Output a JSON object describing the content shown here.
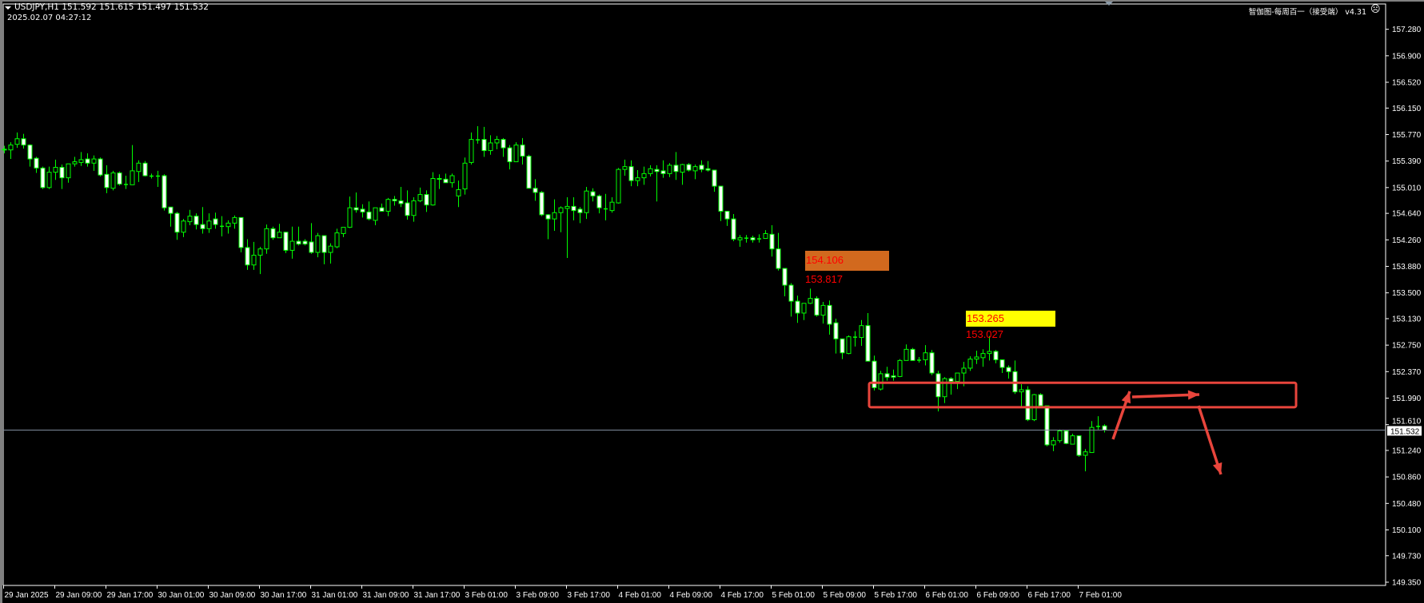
{
  "header": {
    "symbol_line": "USDJPY,H1  151.592 151.615 151.497 151.532",
    "datetime": "2025.02.07 04:27:12",
    "indicator_label": "智伽图-每周百一（接受端） v4.31",
    "indicator_icon": "sad-face-icon"
  },
  "colors": {
    "background": "#000000",
    "axis": "#ffffff",
    "candle_outline": "#00ff00",
    "bull_fill": "#000000",
    "bear_fill": "#ffffff",
    "price_line": "#7f8c9c",
    "annotation": "#e8453c",
    "label_orange": "#d2691e",
    "label_yellow": "#ffff00",
    "label_text": "#ff0000"
  },
  "labels": {
    "orange_box": "154.106",
    "orange_below": "153.817",
    "yellow_box": "153.265",
    "yellow_below": "153.027"
  },
  "chart_data": {
    "type": "candlestick",
    "symbol": "USDJPY",
    "timeframe": "H1",
    "ylim": [
      149.35,
      157.7
    ],
    "grid": false,
    "current_price": 151.532,
    "y_ticks": [
      "157.280",
      "156.900",
      "156.520",
      "156.150",
      "155.770",
      "155.390",
      "155.010",
      "154.640",
      "154.260",
      "153.880",
      "153.500",
      "153.130",
      "152.750",
      "152.370",
      "151.990",
      "151.610",
      "151.240",
      "150.860",
      "150.480",
      "150.100",
      "149.730",
      "149.350"
    ],
    "x_ticks": [
      "29 Jan 2025",
      "29 Jan 09:00",
      "29 Jan 17:00",
      "30 Jan 01:00",
      "30 Jan 09:00",
      "30 Jan 17:00",
      "31 Jan 01:00",
      "31 Jan 09:00",
      "31 Jan 17:00",
      "3 Feb 01:00",
      "3 Feb 09:00",
      "3 Feb 17:00",
      "4 Feb 01:00",
      "4 Feb 09:00",
      "4 Feb 17:00",
      "5 Feb 01:00",
      "5 Feb 09:00",
      "5 Feb 17:00",
      "6 Feb 01:00",
      "6 Feb 09:00",
      "6 Feb 17:00",
      "7 Feb 01:00"
    ],
    "zone": {
      "top": 152.21,
      "bottom": 151.86
    },
    "ohlc": [
      [
        155.55,
        155.61,
        155.5,
        155.56
      ],
      [
        155.55,
        155.66,
        155.42,
        155.62
      ],
      [
        155.63,
        155.8,
        155.58,
        155.71
      ],
      [
        155.71,
        155.78,
        155.57,
        155.62
      ],
      [
        155.62,
        155.63,
        155.31,
        155.42
      ],
      [
        155.43,
        155.45,
        155.22,
        155.29
      ],
      [
        155.29,
        155.31,
        154.99,
        155.01
      ],
      [
        155.01,
        155.31,
        154.99,
        155.23
      ],
      [
        155.23,
        155.41,
        155.12,
        155.3
      ],
      [
        155.3,
        155.34,
        154.99,
        155.15
      ],
      [
        155.15,
        155.35,
        155.08,
        155.35
      ],
      [
        155.35,
        155.45,
        155.31,
        155.38
      ],
      [
        155.37,
        155.52,
        155.32,
        155.41
      ],
      [
        155.42,
        155.5,
        155.31,
        155.36
      ],
      [
        155.36,
        155.47,
        155.25,
        155.42
      ],
      [
        155.42,
        155.44,
        155.17,
        155.19
      ],
      [
        155.2,
        155.33,
        154.93,
        155.01
      ],
      [
        155.0,
        155.25,
        154.97,
        155.22
      ],
      [
        155.22,
        155.24,
        155.04,
        155.06
      ],
      [
        155.06,
        155.18,
        154.99,
        155.06
      ],
      [
        155.05,
        155.62,
        155.05,
        155.25
      ],
      [
        155.24,
        155.4,
        155.09,
        155.36
      ],
      [
        155.36,
        155.39,
        155.17,
        155.18
      ],
      [
        155.18,
        155.21,
        155.14,
        155.18
      ],
      [
        155.18,
        155.25,
        155.02,
        155.18
      ],
      [
        155.18,
        155.2,
        154.68,
        154.72
      ],
      [
        154.73,
        154.73,
        154.45,
        154.64
      ],
      [
        154.64,
        154.66,
        154.26,
        154.37
      ],
      [
        154.37,
        154.56,
        154.3,
        154.53
      ],
      [
        154.52,
        154.69,
        154.47,
        154.6
      ],
      [
        154.6,
        154.64,
        154.41,
        154.48
      ],
      [
        154.48,
        154.73,
        154.35,
        154.42
      ],
      [
        154.42,
        154.64,
        154.36,
        154.53
      ],
      [
        154.56,
        154.65,
        154.42,
        154.48
      ],
      [
        154.46,
        154.6,
        154.31,
        154.46
      ],
      [
        154.45,
        154.54,
        154.35,
        154.5
      ],
      [
        154.5,
        154.61,
        154.42,
        154.58
      ],
      [
        154.58,
        154.58,
        154.08,
        154.15
      ],
      [
        154.15,
        154.27,
        153.83,
        153.9
      ],
      [
        153.9,
        154.23,
        153.83,
        154.04
      ],
      [
        154.04,
        154.16,
        153.77,
        154.13
      ],
      [
        154.13,
        154.48,
        154.06,
        154.42
      ],
      [
        154.42,
        154.45,
        154.26,
        154.29
      ],
      [
        154.29,
        154.49,
        154.29,
        154.37
      ],
      [
        154.37,
        154.37,
        154.07,
        154.11
      ],
      [
        154.11,
        154.45,
        153.99,
        154.24
      ],
      [
        154.24,
        154.45,
        154.18,
        154.2
      ],
      [
        154.24,
        154.27,
        154.18,
        154.2
      ],
      [
        154.23,
        154.5,
        154.06,
        154.08
      ],
      [
        154.08,
        154.36,
        154.01,
        154.32
      ],
      [
        154.32,
        154.32,
        153.91,
        154.08
      ],
      [
        154.08,
        154.21,
        153.92,
        154.17
      ],
      [
        154.16,
        154.42,
        154.14,
        154.36
      ],
      [
        154.35,
        154.44,
        154.3,
        154.44
      ],
      [
        154.44,
        154.88,
        154.43,
        154.72
      ],
      [
        154.72,
        154.94,
        154.65,
        154.69
      ],
      [
        154.7,
        154.77,
        154.58,
        154.66
      ],
      [
        154.66,
        154.81,
        154.54,
        154.56
      ],
      [
        154.54,
        154.72,
        154.47,
        154.72
      ],
      [
        154.72,
        154.78,
        154.67,
        154.67
      ],
      [
        154.67,
        154.86,
        154.6,
        154.84
      ],
      [
        154.84,
        154.89,
        154.75,
        154.82
      ],
      [
        154.82,
        155.02,
        154.73,
        154.78
      ],
      [
        154.79,
        154.97,
        154.55,
        154.61
      ],
      [
        154.61,
        154.87,
        154.52,
        154.82
      ],
      [
        154.82,
        155.01,
        154.8,
        154.91
      ],
      [
        154.91,
        154.97,
        154.66,
        154.76
      ],
      [
        154.76,
        155.23,
        154.75,
        155.14
      ],
      [
        155.14,
        155.2,
        154.99,
        155.13
      ],
      [
        155.13,
        155.21,
        155.08,
        155.08
      ],
      [
        155.08,
        155.21,
        155.01,
        155.18
      ],
      [
        154.89,
        155.11,
        154.73,
        154.98
      ],
      [
        154.99,
        155.44,
        154.91,
        155.36
      ],
      [
        155.37,
        155.8,
        155.34,
        155.7
      ],
      [
        155.7,
        155.89,
        155.64,
        155.7
      ],
      [
        155.7,
        155.88,
        155.45,
        155.54
      ],
      [
        155.54,
        155.76,
        155.48,
        155.65
      ],
      [
        155.65,
        155.75,
        155.56,
        155.7
      ],
      [
        155.7,
        155.72,
        155.45,
        155.58
      ],
      [
        155.58,
        155.62,
        155.27,
        155.38
      ],
      [
        155.38,
        155.66,
        155.38,
        155.62
      ],
      [
        155.62,
        155.72,
        155.34,
        155.46
      ],
      [
        155.46,
        155.48,
        155.0,
        155.0
      ],
      [
        155.0,
        155.13,
        154.82,
        154.94
      ],
      [
        154.94,
        154.96,
        154.6,
        154.62
      ],
      [
        154.62,
        154.63,
        154.27,
        154.56
      ],
      [
        154.56,
        154.84,
        154.39,
        154.65
      ],
      [
        154.65,
        154.74,
        154.37,
        154.72
      ],
      [
        154.71,
        154.87,
        154.0,
        154.74
      ],
      [
        154.74,
        154.87,
        154.54,
        154.68
      ],
      [
        154.7,
        154.73,
        154.5,
        154.65
      ],
      [
        154.65,
        155.02,
        154.56,
        154.96
      ],
      [
        154.95,
        155.0,
        154.81,
        154.89
      ],
      [
        154.89,
        154.91,
        154.64,
        154.72
      ],
      [
        154.71,
        154.92,
        154.54,
        154.71
      ],
      [
        154.68,
        154.87,
        154.65,
        154.8
      ],
      [
        154.79,
        155.29,
        154.78,
        155.27
      ],
      [
        155.27,
        155.41,
        155.18,
        155.31
      ],
      [
        155.31,
        155.4,
        155.03,
        155.11
      ],
      [
        155.11,
        155.26,
        155.03,
        155.15
      ],
      [
        155.15,
        155.31,
        155.05,
        155.21
      ],
      [
        155.21,
        155.33,
        155.17,
        155.28
      ],
      [
        155.27,
        155.33,
        154.81,
        155.24
      ],
      [
        155.25,
        155.4,
        155.15,
        155.21
      ],
      [
        155.21,
        155.36,
        155.16,
        155.33
      ],
      [
        155.33,
        155.52,
        155.12,
        155.24
      ],
      [
        155.23,
        155.35,
        155.05,
        155.34
      ],
      [
        155.34,
        155.36,
        155.24,
        155.26
      ],
      [
        155.25,
        155.34,
        155.13,
        155.31
      ],
      [
        155.33,
        155.4,
        155.23,
        155.27
      ],
      [
        155.28,
        155.39,
        155.24,
        155.26
      ],
      [
        155.26,
        155.26,
        154.95,
        155.03
      ],
      [
        155.03,
        155.03,
        154.53,
        154.67
      ],
      [
        154.67,
        154.67,
        154.46,
        154.56
      ],
      [
        154.56,
        154.63,
        154.24,
        154.27
      ],
      [
        154.26,
        154.33,
        154.16,
        154.29
      ],
      [
        154.29,
        154.33,
        154.22,
        154.29
      ],
      [
        154.29,
        154.32,
        154.22,
        154.26
      ],
      [
        154.28,
        154.34,
        154.22,
        154.28
      ],
      [
        154.28,
        154.4,
        154.28,
        154.35
      ],
      [
        154.34,
        154.47,
        154.02,
        154.13
      ],
      [
        154.13,
        154.36,
        153.82,
        153.85
      ],
      [
        153.85,
        153.85,
        153.45,
        153.61
      ],
      [
        153.61,
        153.64,
        153.16,
        153.38
      ],
      [
        153.38,
        153.46,
        153.07,
        153.21
      ],
      [
        153.21,
        153.35,
        153.11,
        153.35
      ],
      [
        153.35,
        153.56,
        153.34,
        153.42
      ],
      [
        153.42,
        153.45,
        153.16,
        153.18
      ],
      [
        153.18,
        153.37,
        153.06,
        153.32
      ],
      [
        153.32,
        153.39,
        152.9,
        153.05
      ],
      [
        153.07,
        153.13,
        152.63,
        152.84
      ],
      [
        152.84,
        152.84,
        152.55,
        152.64
      ],
      [
        152.63,
        152.89,
        152.62,
        152.87
      ],
      [
        152.87,
        152.95,
        152.73,
        152.87
      ],
      [
        152.86,
        153.11,
        152.74,
        153.03
      ],
      [
        153.03,
        153.21,
        152.52,
        152.52
      ],
      [
        152.52,
        152.6,
        152.1,
        152.14
      ],
      [
        152.12,
        152.38,
        152.1,
        152.34
      ],
      [
        152.34,
        152.44,
        152.24,
        152.29
      ],
      [
        152.31,
        152.4,
        152.24,
        152.29
      ],
      [
        152.3,
        152.55,
        152.29,
        152.53
      ],
      [
        152.53,
        152.76,
        152.53,
        152.69
      ],
      [
        152.69,
        152.71,
        152.53,
        152.53
      ],
      [
        152.54,
        152.58,
        152.5,
        152.54
      ],
      [
        152.54,
        152.75,
        152.46,
        152.64
      ],
      [
        152.64,
        152.68,
        152.32,
        152.35
      ],
      [
        152.34,
        152.38,
        151.8,
        152.01
      ],
      [
        152.01,
        152.29,
        151.92,
        152.27
      ],
      [
        152.27,
        152.29,
        152.04,
        152.23
      ],
      [
        152.23,
        152.35,
        152.12,
        152.35
      ],
      [
        152.35,
        152.51,
        152.16,
        152.42
      ],
      [
        152.42,
        152.59,
        152.38,
        152.55
      ],
      [
        152.55,
        152.67,
        152.48,
        152.58
      ],
      [
        152.57,
        152.69,
        152.44,
        152.63
      ],
      [
        152.63,
        152.88,
        152.53,
        152.66
      ],
      [
        152.66,
        152.68,
        152.49,
        152.54
      ],
      [
        152.54,
        152.54,
        152.35,
        152.43
      ],
      [
        152.43,
        152.46,
        152.27,
        152.37
      ],
      [
        152.37,
        152.53,
        152.05,
        152.08
      ],
      [
        152.08,
        152.19,
        151.86,
        152.11
      ],
      [
        152.11,
        152.16,
        151.66,
        151.68
      ],
      [
        151.68,
        152.05,
        151.66,
        152.04
      ],
      [
        152.04,
        152.06,
        151.88,
        151.88
      ],
      [
        151.88,
        151.88,
        151.3,
        151.32
      ],
      [
        151.32,
        151.43,
        151.23,
        151.38
      ],
      [
        151.38,
        151.54,
        151.35,
        151.52
      ],
      [
        151.52,
        151.53,
        151.33,
        151.34
      ],
      [
        151.33,
        151.48,
        151.33,
        151.45
      ],
      [
        151.45,
        151.45,
        151.15,
        151.17
      ],
      [
        151.17,
        151.26,
        150.94,
        151.22
      ],
      [
        151.21,
        151.66,
        151.21,
        151.57
      ],
      [
        151.59,
        151.73,
        151.54,
        151.59
      ],
      [
        151.592,
        151.615,
        151.497,
        151.532
      ]
    ]
  }
}
